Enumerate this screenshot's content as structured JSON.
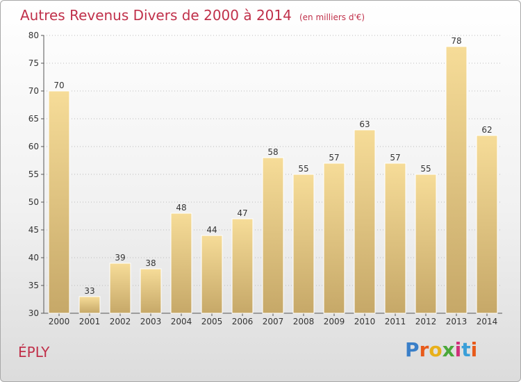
{
  "header": {
    "title": "Autres Revenus Divers de 2000 à 2014",
    "subtitle": "(en milliers d'€)"
  },
  "footer": {
    "place": "ÉPLY",
    "logo_letters": [
      "P",
      "r",
      "o",
      "x",
      "i",
      "t",
      "i"
    ],
    "logo_colors": [
      "#3a7fc8",
      "#e85a1a",
      "#e8b01a",
      "#4aa83a",
      "#d0307a",
      "#3a9fd8",
      "#e85a1a"
    ]
  },
  "colors": {
    "bar_top": "#f6dc98",
    "bar_bottom": "#c6a868",
    "bar_edge": "#ffffff",
    "axis": "#555555",
    "grid": "#bbbbbb"
  },
  "chart_data": {
    "type": "bar",
    "title": "Autres Revenus Divers de 2000 à 2014",
    "subtitle": "(en milliers d'€)",
    "categories": [
      "2000",
      "2001",
      "2002",
      "2003",
      "2004",
      "2005",
      "2006",
      "2007",
      "2008",
      "2009",
      "2010",
      "2011",
      "2012",
      "2013",
      "2014"
    ],
    "values": [
      70,
      33,
      39,
      38,
      48,
      44,
      47,
      58,
      55,
      57,
      63,
      57,
      55,
      78,
      62
    ],
    "ylim": [
      30,
      80
    ],
    "yticks": [
      30,
      35,
      40,
      45,
      50,
      55,
      60,
      65,
      70,
      75,
      80
    ],
    "xlabel": "",
    "ylabel": "",
    "grid": true,
    "legend": "none"
  }
}
